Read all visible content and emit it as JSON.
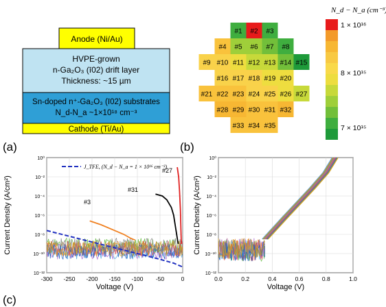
{
  "panel_a": {
    "label": "(a)",
    "anode": "Anode (Ni/Au)",
    "drift": [
      "HVPE-grown",
      "n-Ga₂O₃ (ī02) drift layer",
      "Thickness: ~15 µm"
    ],
    "substrate": [
      "Sn-doped n⁺-Ga₂O₃ (ī02) substrates",
      "N_d-N_a ~1×10¹⁸ cm⁻³"
    ],
    "cathode": "Cathode (Ti/Au)",
    "colors": {
      "anode": "#ffff00",
      "drift": "#bfe3f2",
      "substrate": "#2f9fd6",
      "cathode": "#ffff00"
    }
  },
  "panel_b": {
    "label": "(b)",
    "colorbar_title": "N_d − N_a (cm⁻³)",
    "colorbar_ticks": [
      "1 × 10¹⁶",
      "8 × 10¹⁵",
      "7 × 10¹⁵"
    ],
    "colorbar_colors": [
      "#e81b1b",
      "#f39a2a",
      "#f7b733",
      "#f8c943",
      "#f9d94a",
      "#eddd3f",
      "#c7d93a",
      "#9fcf3a",
      "#72bf3a",
      "#3fae3f",
      "#1e9a3a"
    ],
    "wafer_rows": [
      [
        {
          "id": "#1",
          "c": "#3fae3f"
        },
        {
          "id": "#2",
          "c": "#e81b1b"
        },
        {
          "id": "#3",
          "c": "#3fae3f"
        }
      ],
      [
        {
          "id": "#4",
          "c": "#f9c23c"
        },
        {
          "id": "#5",
          "c": "#9fcf3a"
        },
        {
          "id": "#6",
          "c": "#9fcf3a"
        },
        {
          "id": "#7",
          "c": "#72bf3a"
        },
        {
          "id": "#8",
          "c": "#3fae3f"
        }
      ],
      [
        {
          "id": "#9",
          "c": "#f9d24a"
        },
        {
          "id": "#10",
          "c": "#f9d24a"
        },
        {
          "id": "#11",
          "c": "#eedd3f"
        },
        {
          "id": "#12",
          "c": "#c7d93a"
        },
        {
          "id": "#13",
          "c": "#c7d93a"
        },
        {
          "id": "#14",
          "c": "#72bf3a"
        },
        {
          "id": "#15",
          "c": "#1e9a3a"
        }
      ],
      [
        {
          "id": "#16",
          "c": "#f9d24a"
        },
        {
          "id": "#17",
          "c": "#f9d24a"
        },
        {
          "id": "#18",
          "c": "#f9d24a"
        },
        {
          "id": "#19",
          "c": "#eedd3f"
        },
        {
          "id": "#20",
          "c": "#eedd3f"
        }
      ],
      [
        {
          "id": "#21",
          "c": "#f9c23c"
        },
        {
          "id": "#22",
          "c": "#f9c23c"
        },
        {
          "id": "#23",
          "c": "#f9c23c"
        },
        {
          "id": "#24",
          "c": "#f9d24a"
        },
        {
          "id": "#25",
          "c": "#f9d24a"
        },
        {
          "id": "#26",
          "c": "#eedd3f"
        },
        {
          "id": "#27",
          "c": "#c7d93a"
        }
      ],
      [
        {
          "id": "#28",
          "c": "#f7b733"
        },
        {
          "id": "#29",
          "c": "#f7b733"
        },
        {
          "id": "#30",
          "c": "#f9c23c"
        },
        {
          "id": "#31",
          "c": "#f9c23c"
        },
        {
          "id": "#32",
          "c": "#f7b733"
        }
      ],
      [
        {
          "id": "#33",
          "c": "#f9c23c"
        },
        {
          "id": "#34",
          "c": "#f9c23c"
        },
        {
          "id": "#35",
          "c": "#f9c23c"
        }
      ]
    ]
  },
  "panel_c": {
    "label": "(c)"
  },
  "chart_data": [
    {
      "type": "line",
      "ylabel": "Current Density (A/cm²)",
      "xlabel": "Voltage (V)",
      "xlim": [
        -300,
        0
      ],
      "ylim_exp": [
        -12,
        0
      ],
      "yscale": "log",
      "xticks": [
        "-300",
        "-250",
        "-200",
        "-150",
        "-100",
        "-50",
        "0"
      ],
      "yticks": [
        "10⁰",
        "10⁻²",
        "10⁻⁴",
        "10⁻⁶",
        "10⁻⁸",
        "10⁻¹⁰",
        "10⁻¹²"
      ],
      "legend": "J_TFE, (N_d − N_a = 1 × 10¹⁶ cm⁻³)",
      "annotations": [
        "#3",
        "#31",
        "#27"
      ],
      "series": [
        {
          "name": "#3",
          "color": "#f08020",
          "x": [
            -205,
            -180,
            -150,
            -130,
            -115,
            -105
          ],
          "log10y": [
            -6.6,
            -7.0,
            -7.6,
            -8.0,
            -8.4,
            -8.6
          ]
        },
        {
          "name": "#31",
          "color": "#000000",
          "x": [
            -60,
            -45,
            -35,
            -25,
            -20,
            -15,
            -10
          ],
          "log10y": [
            -3.8,
            -4.0,
            -4.4,
            -5.2,
            -6.0,
            -7.5,
            -9.0
          ]
        },
        {
          "name": "#27",
          "color": "#e02020",
          "x": [
            -12,
            -9,
            -7,
            -5,
            -4,
            -3
          ],
          "log10y": [
            -1.0,
            -2.0,
            -3.5,
            -5.5,
            -7.5,
            -9.0
          ]
        },
        {
          "name": "J_TFE",
          "color": "#2030c0",
          "dashed": true,
          "x": [
            -300,
            -250,
            -200,
            -150,
            -100,
            -50,
            -20,
            0
          ],
          "log10y": [
            -7.6,
            -8.2,
            -8.8,
            -9.4,
            -10.0,
            -10.6,
            -11.0,
            -11.4
          ]
        }
      ]
    },
    {
      "type": "line",
      "ylabel": "Current Density (A/cm²)",
      "xlabel": "Voltage (V)",
      "xlim": [
        0.0,
        1.0
      ],
      "ylim_exp": [
        -12,
        0
      ],
      "yscale": "log",
      "xticks": [
        "0.0",
        "0.2",
        "0.4",
        "0.6",
        "0.8",
        "1.0"
      ],
      "yticks": [
        "10⁰",
        "10⁻²",
        "10⁻⁴",
        "10⁻⁶",
        "10⁻⁸",
        "10⁻¹⁰",
        "10⁻¹²"
      ],
      "forward": {
        "x": [
          0.35,
          0.5,
          0.6,
          0.7,
          0.8,
          0.87
        ],
        "log10y": [
          -8.5,
          -6.2,
          -4.7,
          -3.2,
          -1.6,
          0.0
        ]
      }
    }
  ]
}
